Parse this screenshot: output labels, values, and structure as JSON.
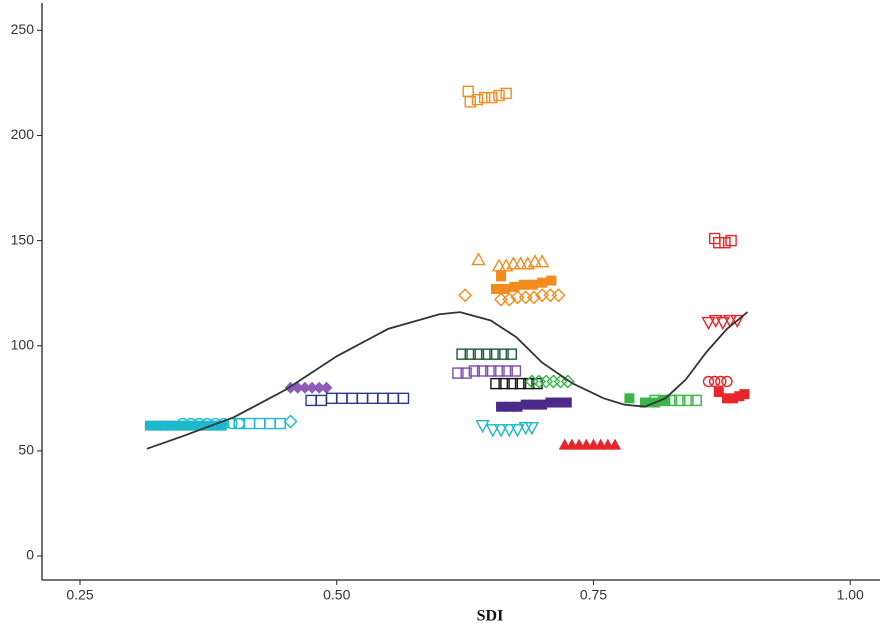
{
  "chart_data": {
    "type": "scatter",
    "x_label": "SDI",
    "xlim": [
      0.213,
      1.029
    ],
    "ylim": [
      -11.4,
      263
    ],
    "xticks": [
      {
        "value": 0.25,
        "label": "0.25"
      },
      {
        "value": 0.5,
        "label": "0.50"
      },
      0.75,
      {
        "value": 1,
        "label": "1.00"
      }
    ],
    "yticks": [
      0,
      50,
      100,
      150,
      200,
      250
    ],
    "grid": false,
    "series": [
      {
        "marker": "square",
        "color": "#1fb8cc",
        "x": [
          0.318,
          0.325,
          0.332,
          0.339,
          0.346,
          0.353,
          0.36,
          0.367,
          0.374,
          0.381,
          0.388
        ],
        "values": [
          62,
          62,
          62,
          62,
          62,
          62,
          62,
          62,
          62,
          62,
          62
        ]
      },
      {
        "marker": "circle-open",
        "color": "#1fb8cc",
        "x": [
          0.35,
          0.358,
          0.366,
          0.374,
          0.382,
          0.39,
          0.398,
          0.405
        ],
        "values": [
          63,
          63,
          63,
          63,
          63,
          63,
          63,
          63
        ]
      },
      {
        "marker": "square-open",
        "color": "#1fb8cc",
        "x": [
          0.405,
          0.415,
          0.425,
          0.435,
          0.445
        ],
        "values": [
          63,
          63,
          63,
          63,
          63
        ]
      },
      {
        "marker": "diamond-open",
        "color": "#1fb8cc",
        "x": [
          0.455
        ],
        "values": [
          64
        ]
      },
      {
        "marker": "diamond",
        "color": "#8e5cb8",
        "x": [
          0.455,
          0.462,
          0.469,
          0.476,
          0.483,
          0.49
        ],
        "values": [
          80,
          80,
          80,
          80,
          80,
          80
        ]
      },
      {
        "marker": "square-open",
        "color": "#2b3a8c",
        "x": [
          0.475,
          0.485,
          0.495,
          0.505,
          0.515,
          0.525,
          0.535,
          0.545,
          0.555,
          0.565
        ],
        "values": [
          74,
          74,
          75,
          75,
          75,
          75,
          75,
          75,
          75,
          75
        ]
      },
      {
        "marker": "square-open",
        "color": "#f28c1e",
        "x": [
          0.628,
          0.63,
          0.637,
          0.644,
          0.651,
          0.658,
          0.665
        ],
        "values": [
          221,
          216,
          217,
          218,
          218,
          219,
          220
        ]
      },
      {
        "marker": "triangle-open",
        "color": "#f28c1e",
        "x": [
          0.638,
          0.658,
          0.665,
          0.672,
          0.679,
          0.686,
          0.693,
          0.7
        ],
        "values": [
          141,
          138,
          138,
          139,
          139,
          139,
          140,
          140
        ]
      },
      {
        "marker": "square",
        "color": "#f28c1e",
        "x": [
          0.66,
          0.655,
          0.664,
          0.673,
          0.682,
          0.691,
          0.7,
          0.709
        ],
        "values": [
          133,
          127,
          127,
          128,
          129,
          129,
          130,
          131
        ]
      },
      {
        "marker": "diamond-open",
        "color": "#f28c1e",
        "x": [
          0.625,
          0.66,
          0.668,
          0.676,
          0.684,
          0.692,
          0.7,
          0.708,
          0.716
        ],
        "values": [
          124,
          122,
          122,
          123,
          123,
          123,
          124,
          124,
          124
        ]
      },
      {
        "marker": "square-open",
        "color": "#1e5a3a",
        "x": [
          0.622,
          0.63,
          0.638,
          0.646,
          0.654,
          0.662,
          0.67
        ],
        "values": [
          96,
          96,
          96,
          96,
          96,
          96,
          96
        ]
      },
      {
        "marker": "square-open",
        "color": "#7a4fb0",
        "x": [
          0.618,
          0.626,
          0.634,
          0.642,
          0.65,
          0.658,
          0.666,
          0.674
        ],
        "values": [
          87,
          87,
          88,
          88,
          88,
          88,
          88,
          88
        ]
      },
      {
        "marker": "square-open",
        "color": "#111111",
        "x": [
          0.655,
          0.663,
          0.671,
          0.679,
          0.687,
          0.695
        ],
        "values": [
          82,
          82,
          82,
          82,
          82,
          82
        ]
      },
      {
        "marker": "diamond-open",
        "color": "#3ab54a",
        "x": [
          0.69,
          0.697,
          0.704,
          0.711,
          0.718,
          0.725
        ],
        "values": [
          83,
          83,
          83,
          83,
          83,
          83
        ]
      },
      {
        "marker": "square",
        "color": "#4b2a8a",
        "x": [
          0.66,
          0.668,
          0.676,
          0.684,
          0.692,
          0.7,
          0.708,
          0.716,
          0.724
        ],
        "values": [
          71,
          71,
          71,
          72,
          72,
          72,
          73,
          73,
          73
        ]
      },
      {
        "marker": "triangle-down-open",
        "color": "#1fb8cc",
        "x": [
          0.642,
          0.652,
          0.66,
          0.668,
          0.676,
          0.684,
          0.69
        ],
        "values": [
          62,
          60,
          60,
          60,
          60,
          61,
          61
        ]
      },
      {
        "marker": "triangle",
        "color": "#e8262a",
        "x": [
          0.722,
          0.729,
          0.736,
          0.743,
          0.75,
          0.757,
          0.764,
          0.771
        ],
        "values": [
          53,
          53,
          53,
          53,
          53,
          53,
          53,
          53
        ]
      },
      {
        "marker": "square",
        "color": "#3ab54a",
        "x": [
          0.785,
          0.8,
          0.81,
          0.82
        ],
        "values": [
          75,
          73,
          73,
          74
        ]
      },
      {
        "marker": "square-open",
        "color": "#3ab54a",
        "x": [
          0.81,
          0.818,
          0.826,
          0.834,
          0.842,
          0.85
        ],
        "values": [
          74,
          74,
          74,
          74,
          74,
          74
        ]
      },
      {
        "marker": "square-open",
        "color": "#e8262a",
        "x": [
          0.868,
          0.872,
          0.878,
          0.884
        ],
        "values": [
          151,
          149,
          149,
          150
        ]
      },
      {
        "marker": "triangle-down-open",
        "color": "#e8262a",
        "x": [
          0.862,
          0.869,
          0.876,
          0.883,
          0.89
        ],
        "values": [
          111,
          112,
          111,
          112,
          112
        ]
      },
      {
        "marker": "circle-open",
        "color": "#e8262a",
        "x": [
          0.862,
          0.868,
          0.874,
          0.88
        ],
        "values": [
          83,
          83,
          83,
          83
        ]
      },
      {
        "marker": "square",
        "color": "#e8262a",
        "x": [
          0.872,
          0.88,
          0.886,
          0.892,
          0.897
        ],
        "values": [
          78,
          75,
          75,
          76,
          77
        ]
      },
      {
        "type": "line",
        "color": "#333333",
        "x": [
          0.315,
          0.35,
          0.4,
          0.45,
          0.5,
          0.55,
          0.6,
          0.62,
          0.65,
          0.675,
          0.7,
          0.73,
          0.76,
          0.78,
          0.8,
          0.82,
          0.84,
          0.86,
          0.88,
          0.9
        ],
        "values": [
          51,
          57,
          66,
          79,
          95,
          108,
          115,
          116,
          112,
          104,
          92,
          82,
          75,
          72,
          71,
          75,
          84,
          97,
          108,
          116
        ]
      }
    ]
  }
}
